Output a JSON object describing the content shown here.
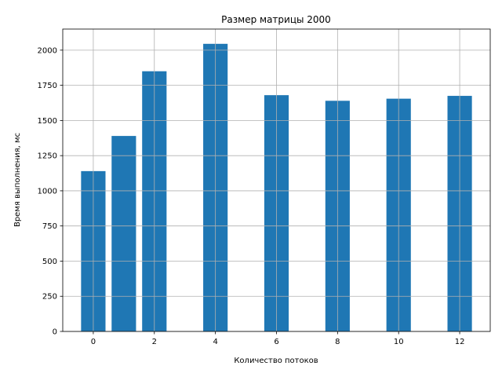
{
  "chart_data": {
    "type": "bar",
    "title": "Размер матрицы 2000",
    "xlabel": "Количество потоков",
    "ylabel": "Время выполнения, мс",
    "x": [
      0,
      1,
      2,
      4,
      6,
      8,
      10,
      12
    ],
    "values": [
      1140,
      1390,
      1850,
      2045,
      1680,
      1640,
      1655,
      1675
    ],
    "xlim": [
      -1,
      13
    ],
    "ylim": [
      0,
      2150
    ],
    "xticks": [
      0,
      2,
      4,
      6,
      8,
      10,
      12
    ],
    "yticks": [
      0,
      250,
      500,
      750,
      1000,
      1250,
      1500,
      1750,
      2000
    ],
    "bar_width": 0.8,
    "bar_color": "#1f77b4",
    "grid": true,
    "grid_color": "#b0b0b0"
  }
}
